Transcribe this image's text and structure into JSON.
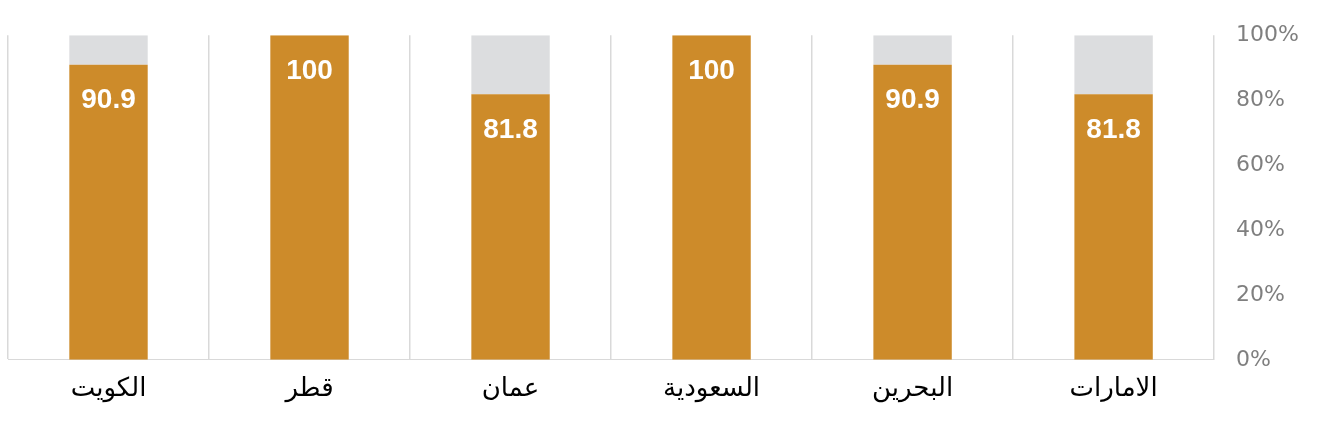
{
  "chart_data": {
    "type": "bar",
    "stacked": true,
    "categories": [
      "الكويت",
      "قطر",
      "عمان",
      "السعودية",
      "البحرين",
      "الامارات"
    ],
    "series": [
      {
        "color": "#cd8b2a",
        "values": [
          90.9,
          100,
          81.8,
          100,
          90.9,
          81.8
        ],
        "value_labels": [
          "90.9",
          "100",
          "81.8",
          "100",
          "90.9",
          "81.8"
        ]
      },
      {
        "color": "#dcdddf",
        "values": [
          9.1,
          0,
          18.2,
          0,
          9.1,
          18.2
        ]
      }
    ],
    "ylim": [
      0,
      100
    ],
    "yticks": [
      {
        "value": 0,
        "label": "0%"
      },
      {
        "value": 20,
        "label": "20%"
      },
      {
        "value": 40,
        "label": "40%"
      },
      {
        "value": 60,
        "label": "60%"
      },
      {
        "value": 80,
        "label": "80%"
      },
      {
        "value": 100,
        "label": "100%"
      }
    ],
    "grid": "x",
    "legend": false
  }
}
